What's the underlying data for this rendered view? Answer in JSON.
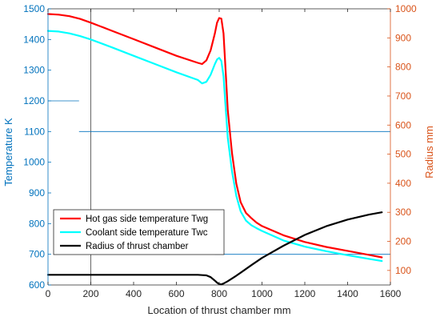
{
  "chart_data": {
    "type": "line",
    "title": "",
    "xlabel": "Location of thrust chamber mm",
    "ylabel_left": "Temperature K",
    "ylabel_right": "Radius mm",
    "xlim": [
      0,
      1600
    ],
    "ylim_left": [
      600,
      1500
    ],
    "ylim_right": [
      50,
      1000
    ],
    "x_ticks": [
      0,
      200,
      400,
      600,
      800,
      1000,
      1200,
      1400,
      1600
    ],
    "y_ticks_left": [
      600,
      700,
      800,
      900,
      1000,
      1100,
      1200,
      1300,
      1400,
      1500
    ],
    "y_ticks_right": [
      100,
      200,
      300,
      400,
      500,
      600,
      700,
      800,
      900,
      1000
    ],
    "grid": false,
    "legend_position": "bottom-left",
    "series": [
      {
        "name": "Hot gas side temperature Twg",
        "axis": "left",
        "color": "#ff0000",
        "x": [
          0,
          50,
          100,
          150,
          200,
          300,
          400,
          500,
          600,
          700,
          720,
          740,
          760,
          780,
          790,
          800,
          810,
          820,
          830,
          840,
          860,
          880,
          900,
          925,
          950,
          975,
          1000,
          1100,
          1200,
          1300,
          1400,
          1500,
          1560
        ],
        "y": [
          1483,
          1481,
          1476,
          1467,
          1455,
          1428,
          1401,
          1374,
          1347,
          1324,
          1320,
          1332,
          1365,
          1420,
          1455,
          1470,
          1468,
          1420,
          1300,
          1170,
          1030,
          930,
          870,
          835,
          818,
          803,
          792,
          762,
          740,
          724,
          711,
          698,
          690
        ]
      },
      {
        "name": "Coolant side temperature Twc",
        "axis": "left",
        "color": "#00ffff",
        "x": [
          0,
          50,
          100,
          150,
          200,
          300,
          400,
          500,
          600,
          700,
          720,
          740,
          760,
          780,
          790,
          800,
          810,
          820,
          830,
          840,
          860,
          880,
          900,
          925,
          950,
          975,
          1000,
          1100,
          1200,
          1300,
          1400,
          1500,
          1560
        ],
        "y": [
          1428,
          1426,
          1420,
          1411,
          1400,
          1374,
          1347,
          1320,
          1293,
          1268,
          1257,
          1262,
          1285,
          1320,
          1335,
          1340,
          1330,
          1280,
          1180,
          1080,
          970,
          890,
          840,
          810,
          795,
          785,
          776,
          745,
          725,
          710,
          697,
          685,
          678
        ]
      },
      {
        "name": "Radius of thrust chamber",
        "axis": "right",
        "color": "#000000",
        "x": [
          0,
          100,
          200,
          300,
          400,
          500,
          600,
          700,
          740,
          760,
          780,
          790,
          800,
          810,
          820,
          840,
          880,
          900,
          950,
          1000,
          1100,
          1200,
          1300,
          1400,
          1500,
          1560
        ],
        "y": [
          85,
          85,
          85,
          85,
          85,
          85,
          85,
          85,
          83,
          77,
          65,
          58,
          53,
          52,
          55,
          63,
          82,
          92,
          118,
          143,
          185,
          222,
          252,
          275,
          292,
          300
        ]
      }
    ]
  }
}
